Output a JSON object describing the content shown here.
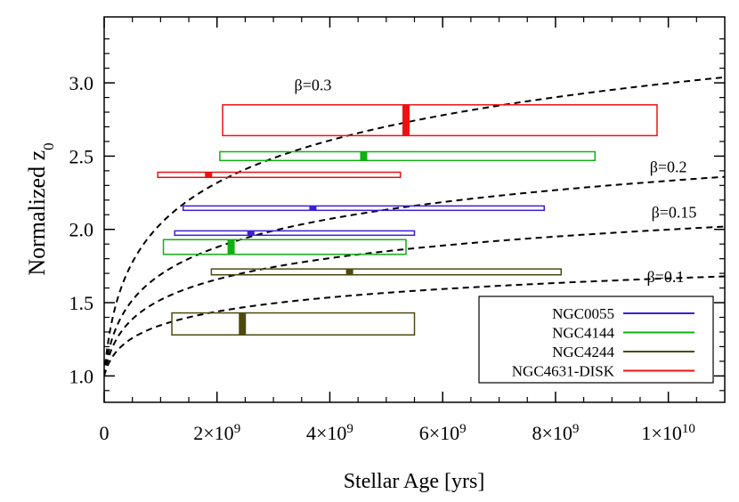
{
  "chart_data": {
    "type": "range-bars",
    "xlabel": "Stellar Age [yrs]",
    "ylabel": "Normalized z",
    "ylabel_sub": "0",
    "xlim": [
      0,
      11000000000
    ],
    "ylim": [
      0.82,
      3.45
    ],
    "x_ticks": [
      {
        "value": 0,
        "label": "0",
        "sup": ""
      },
      {
        "value": 2000000000,
        "label": "2×10",
        "sup": "9"
      },
      {
        "value": 4000000000,
        "label": "4×10",
        "sup": "9"
      },
      {
        "value": 6000000000,
        "label": "6×10",
        "sup": "9"
      },
      {
        "value": 8000000000,
        "label": "8×10",
        "sup": "9"
      },
      {
        "value": 10000000000,
        "label": "1×10",
        "sup": "10"
      }
    ],
    "y_ticks": [
      {
        "value": 1.0,
        "label": "1.0"
      },
      {
        "value": 1.5,
        "label": "1.5"
      },
      {
        "value": 2.0,
        "label": "2.0"
      },
      {
        "value": 2.5,
        "label": "2.5"
      },
      {
        "value": 3.0,
        "label": "3.0"
      }
    ],
    "series": [
      {
        "name": "NGC0055",
        "color": "#3b1ed6"
      },
      {
        "name": "NGC4144",
        "color": "#10b010"
      },
      {
        "name": "NGC4244",
        "color": "#4d4a10"
      },
      {
        "name": "NGC4631-DISK",
        "color": "#ee1111"
      }
    ],
    "ranges": [
      {
        "series": "NGC4631-DISK",
        "x_min": 2100000000,
        "x_max": 9800000000,
        "y_min": 2.64,
        "y_max": 2.85,
        "x_mid": 5350000000
      },
      {
        "series": "NGC4144",
        "x_min": 2050000000,
        "x_max": 8700000000,
        "y_min": 2.47,
        "y_max": 2.53,
        "x_mid": 4600000000
      },
      {
        "series": "NGC4631-DISK",
        "x_min": 950000000,
        "x_max": 5250000000,
        "y_min": 2.355,
        "y_max": 2.39,
        "x_mid": 1850000000
      },
      {
        "series": "NGC0055",
        "x_min": 1400000000,
        "x_max": 7800000000,
        "y_min": 2.13,
        "y_max": 2.16,
        "x_mid": 3700000000
      },
      {
        "series": "NGC0055",
        "x_min": 1250000000,
        "x_max": 5500000000,
        "y_min": 1.96,
        "y_max": 1.99,
        "x_mid": 2600000000
      },
      {
        "series": "NGC4144",
        "x_min": 1050000000,
        "x_max": 5350000000,
        "y_min": 1.83,
        "y_max": 1.93,
        "x_mid": 2250000000
      },
      {
        "series": "NGC4244",
        "x_min": 1900000000,
        "x_max": 8100000000,
        "y_min": 1.69,
        "y_max": 1.73,
        "x_mid": 4350000000
      },
      {
        "series": "NGC4244",
        "x_min": 1200000000,
        "x_max": 5500000000,
        "y_min": 1.28,
        "y_max": 1.43,
        "x_mid": 2450000000
      }
    ],
    "model_curves": [
      {
        "beta": 0.3,
        "label": "β=0.3",
        "label_x": 3700000000,
        "label_y": 2.95
      },
      {
        "beta": 0.2,
        "label": "β=0.2",
        "label_x": 10000000000,
        "label_y": 2.39
      },
      {
        "beta": 0.15,
        "label": "β=0.15",
        "label_x": 10100000000,
        "label_y": 2.08
      },
      {
        "beta": 0.1,
        "label": "β=0.1",
        "label_x": 9950000000,
        "label_y": 1.64
      }
    ],
    "legend": {
      "position": "bottom-right"
    }
  }
}
